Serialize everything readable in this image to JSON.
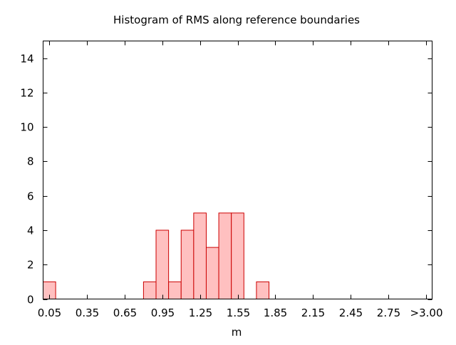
{
  "chart_data": {
    "type": "bar",
    "title": "Histogram of RMS along reference boundaries",
    "xlabel": "m",
    "ylabel": "",
    "ylim": [
      0,
      15
    ],
    "xlim": [
      0,
      3.1
    ],
    "bin_width": 0.1,
    "yticks": [
      0,
      2,
      4,
      6,
      8,
      10,
      12,
      14
    ],
    "xticks": [
      {
        "value": 0.05,
        "label": "0.05"
      },
      {
        "value": 0.35,
        "label": "0.35"
      },
      {
        "value": 0.65,
        "label": "0.65"
      },
      {
        "value": 0.95,
        "label": "0.95"
      },
      {
        "value": 1.25,
        "label": "1.25"
      },
      {
        "value": 1.55,
        "label": "1.55"
      },
      {
        "value": 1.85,
        "label": "1.85"
      },
      {
        "value": 2.15,
        "label": "2.15"
      },
      {
        "value": 2.45,
        "label": "2.45"
      },
      {
        "value": 2.75,
        "label": "2.75"
      },
      {
        "value": 3.05,
        "label": ">3.00"
      }
    ],
    "bins": [
      {
        "x": 0.05,
        "count": 1
      },
      {
        "x": 0.85,
        "count": 1
      },
      {
        "x": 0.95,
        "count": 4
      },
      {
        "x": 1.05,
        "count": 1
      },
      {
        "x": 1.15,
        "count": 4
      },
      {
        "x": 1.25,
        "count": 5
      },
      {
        "x": 1.35,
        "count": 3
      },
      {
        "x": 1.45,
        "count": 5
      },
      {
        "x": 1.55,
        "count": 5
      },
      {
        "x": 1.75,
        "count": 1
      }
    ],
    "colors": {
      "bar_fill": "#ffc0c0",
      "bar_stroke": "#cc0000",
      "axis": "#000000"
    },
    "grid": false
  }
}
